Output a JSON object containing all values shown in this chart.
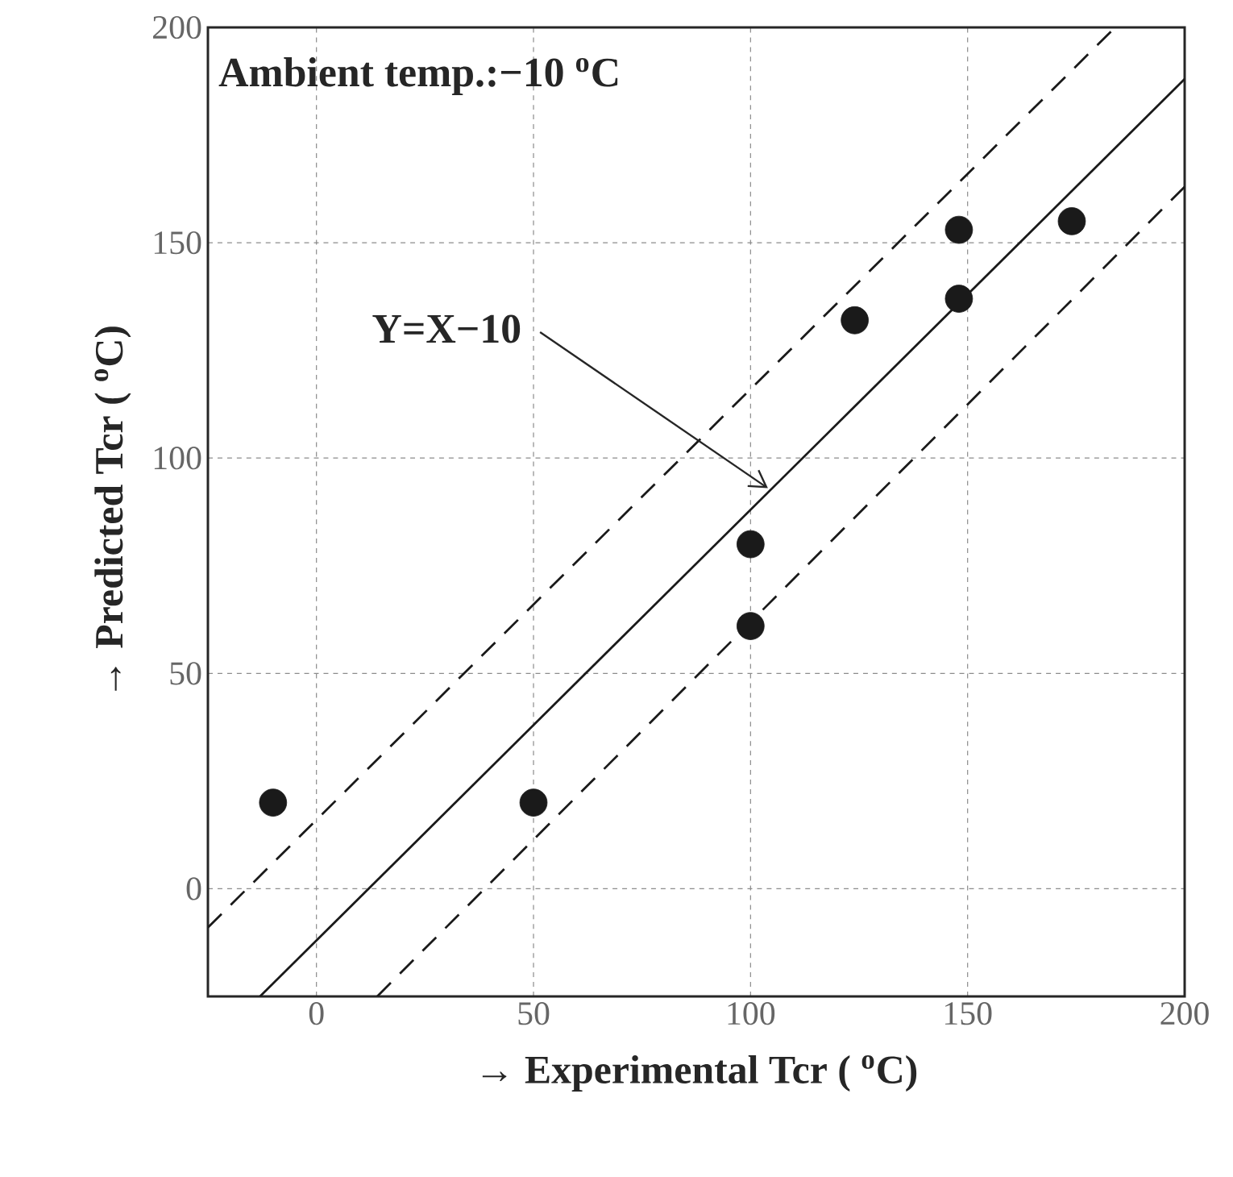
{
  "chart_data": {
    "type": "scatter",
    "xlabel": "→ Experimental Tcr ( $^{o}$C)",
    "ylabel": "→ Predicted Tcr ( $^{o}$C)",
    "xlim": [
      -25,
      200
    ],
    "ylim": [
      -25,
      200
    ],
    "xticks": [
      0,
      50,
      100,
      150,
      200
    ],
    "yticks": [
      0,
      50,
      100,
      150,
      200
    ],
    "grid": true,
    "annotations": [
      "Ambient temp.:−10 $^{o}$C",
      {
        "text": "Y=X−10",
        "x": 104,
        "y": 93
      }
    ],
    "series": [
      {
        "type": "line",
        "color": "#1a1a1a",
        "line_style": "solid",
        "marker": "none",
        "x": [
          -13,
          200
        ],
        "values": [
          -25,
          188
        ]
      },
      {
        "type": "line",
        "color": "#1a1a1a",
        "line_style": "dashed",
        "marker": "none",
        "x": [
          -25,
          184
        ],
        "values": [
          -9,
          200
        ]
      },
      {
        "type": "line",
        "color": "#1a1a1a",
        "line_style": "dashed",
        "marker": "none",
        "x": [
          14,
          200
        ],
        "values": [
          -25,
          163
        ]
      },
      {
        "color": "#1a1a1a",
        "marker": "circle",
        "x": [
          -10,
          50,
          100,
          100,
          124,
          148,
          148,
          174
        ],
        "values": [
          20,
          20,
          80,
          61,
          132,
          153,
          137,
          155
        ]
      }
    ]
  }
}
